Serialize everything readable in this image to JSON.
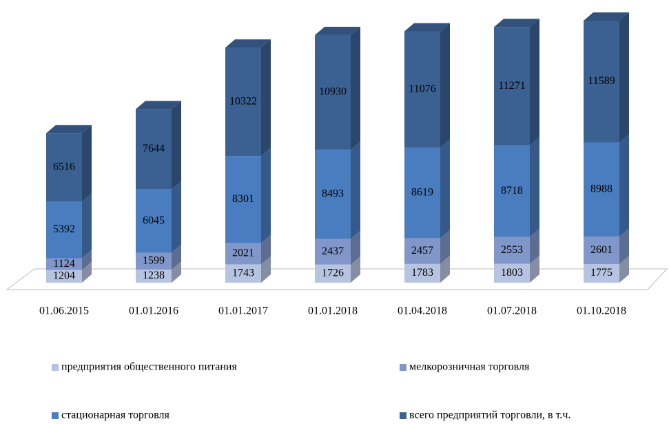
{
  "chart_data": {
    "type": "bar3d_stacked",
    "categories": [
      "01.06.2015",
      "01.01.2016",
      "01.01.2017",
      "01.01.2018",
      "01.04.2018",
      "01.07.2018",
      "01.10.2018"
    ],
    "series": [
      {
        "name": "предприятия общественного питания",
        "color": "#b7c4e1",
        "values": [
          1204,
          1238,
          1743,
          1726,
          1783,
          1803,
          1775
        ]
      },
      {
        "name": "мелкорозничная торговля",
        "color": "#8197c9",
        "values": [
          1124,
          1599,
          2021,
          2437,
          2457,
          2553,
          2601
        ]
      },
      {
        "name": "стационарная торговля",
        "color": "#4a7dbf",
        "values": [
          5392,
          6045,
          8301,
          8493,
          8619,
          8718,
          8988
        ]
      },
      {
        "name": "всего предприятий  торговли, в т.ч.",
        "color": "#3b6193",
        "values": [
          6516,
          7644,
          10322,
          10930,
          11076,
          11271,
          11589
        ]
      }
    ]
  }
}
